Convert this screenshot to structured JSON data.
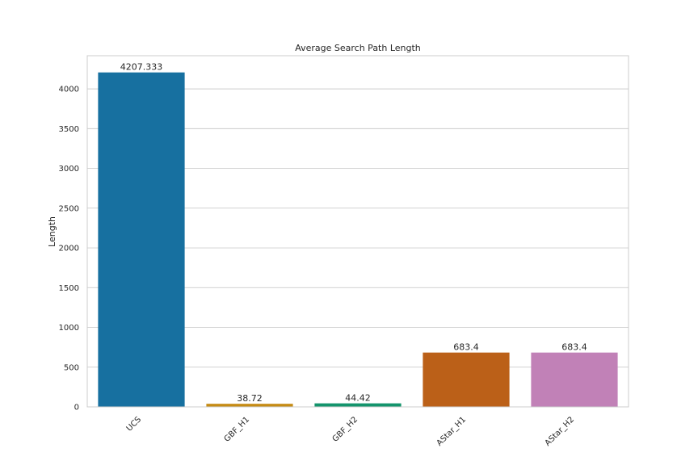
{
  "chart_data": {
    "type": "bar",
    "title": "Average Search Path Length",
    "xlabel": "",
    "ylabel": "Length",
    "categories": [
      "UCS",
      "GBF_H1",
      "GBF_H2",
      "AStar_H1",
      "AStar_H2"
    ],
    "values": [
      4207.333,
      38.72,
      44.42,
      683.4,
      683.4
    ],
    "value_labels": [
      "4207.333",
      "38.72",
      "44.42",
      "683.4",
      "683.4"
    ],
    "colors": [
      "#1770a0",
      "#c58b14",
      "#14946c",
      "#bb6018",
      "#c181b7"
    ],
    "yticks": [
      0,
      500,
      1000,
      1500,
      2000,
      2500,
      3000,
      3500,
      4000
    ],
    "ylim": [
      0,
      4417.7
    ],
    "grid": true,
    "legend": false
  }
}
